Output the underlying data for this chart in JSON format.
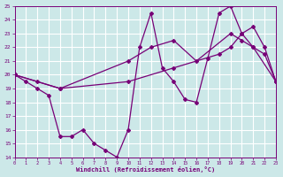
{
  "xlabel": "Windchill (Refroidissement éolien,°C)",
  "xlim": [
    0,
    23
  ],
  "ylim": [
    14,
    25
  ],
  "yticks": [
    14,
    15,
    16,
    17,
    18,
    19,
    20,
    21,
    22,
    23,
    24,
    25
  ],
  "xticks": [
    0,
    1,
    2,
    3,
    4,
    5,
    6,
    7,
    8,
    9,
    10,
    11,
    12,
    13,
    14,
    15,
    16,
    17,
    18,
    19,
    20,
    21,
    22,
    23
  ],
  "bg_color": "#cce8e8",
  "grid_color": "#aadddd",
  "line_color": "#770077",
  "line1_x": [
    0,
    1,
    2,
    3,
    4,
    5,
    6,
    7,
    8,
    9,
    10,
    11,
    12,
    13,
    14,
    15,
    16,
    17,
    18,
    19,
    20,
    21,
    22,
    23
  ],
  "line1_y": [
    20,
    19.5,
    19.0,
    18.5,
    15.5,
    15.5,
    16.0,
    15.0,
    14.5,
    14.0,
    16.0,
    22.0,
    24.5,
    20.5,
    19.5,
    18.2,
    18.0,
    21.2,
    24.5,
    25.0,
    23.0,
    22.0,
    21.5,
    19.5
  ],
  "line2_x": [
    0,
    2,
    4,
    10,
    12,
    14,
    16,
    19,
    20,
    21,
    23
  ],
  "line2_y": [
    20,
    19.5,
    19.0,
    21.0,
    22.0,
    22.5,
    21.0,
    23.0,
    22.5,
    22.0,
    19.5
  ],
  "line3_x": [
    0,
    4,
    10,
    14,
    18,
    19,
    20,
    21,
    22,
    23
  ],
  "line3_y": [
    20,
    19.0,
    19.5,
    20.5,
    21.5,
    22.0,
    23.0,
    23.5,
    22.0,
    19.5
  ]
}
